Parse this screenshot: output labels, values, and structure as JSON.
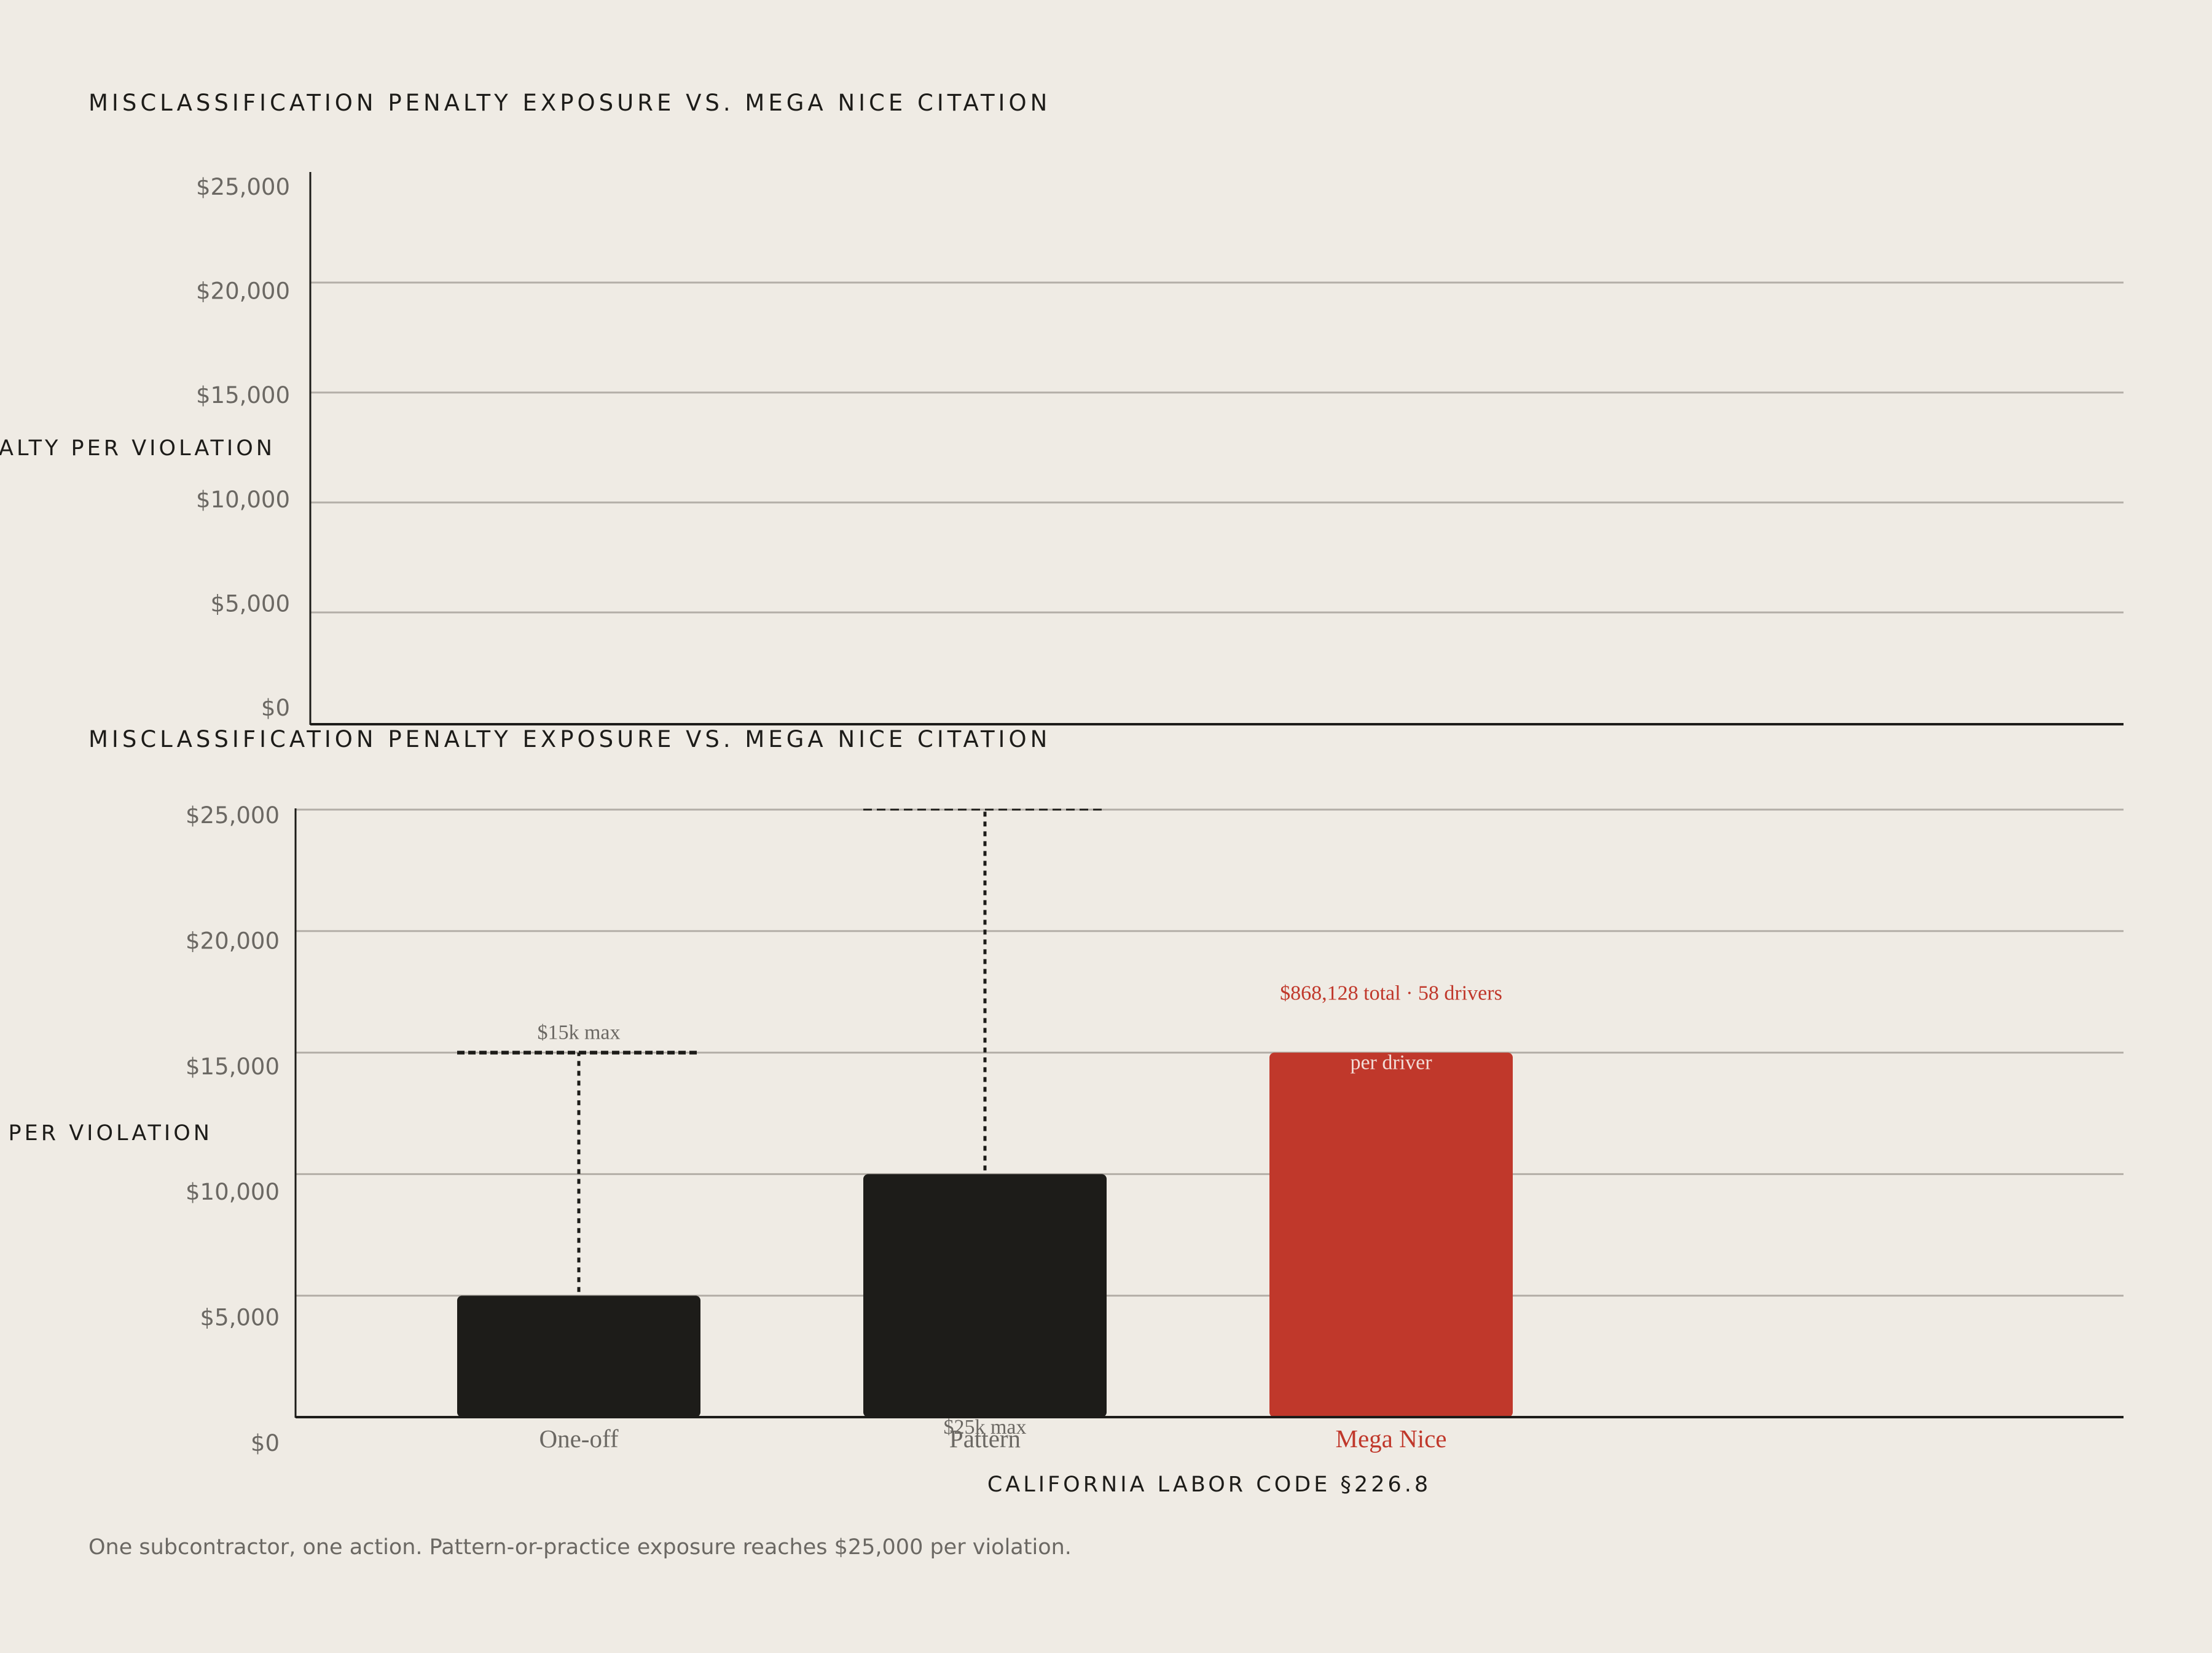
{
  "colors": {
    "background": "#efebe4",
    "bar": "#1d1c19",
    "highlight": "#c0382b",
    "grid": "#b3aea7",
    "muted_text": "#6b6863"
  },
  "caption": "One subcontractor, one action. Pattern-or-practice exposure reaches $25,000 per violation.",
  "chart_data": [
    {
      "type": "bar",
      "title": "MISCLASSIFICATION PENALTY EXPOSURE VS. MEGA NICE CITATION",
      "ylabel": "PENALTY PER VIOLATION",
      "ylim": [
        0,
        25000
      ],
      "yticks": [
        0,
        5000,
        10000,
        15000,
        20000,
        25000
      ],
      "ytick_labels": [
        "$0",
        "$5,000",
        "$10,000",
        "$15,000",
        "$20,000",
        "$25,000"
      ],
      "grid": true,
      "categories": [],
      "values": []
    },
    {
      "type": "bar",
      "title": "MISCLASSIFICATION PENALTY EXPOSURE VS. MEGA NICE CITATION",
      "ylabel": "PENALTY PER VIOLATION",
      "xlabel": "CALIFORNIA LABOR CODE §226.8",
      "ylim": [
        0,
        25000
      ],
      "yticks": [
        0,
        5000,
        10000,
        15000,
        20000,
        25000
      ],
      "ytick_labels": [
        "$0",
        "$5,000",
        "$10,000",
        "$15,000",
        "$20,000",
        "$25,000"
      ],
      "grid": true,
      "categories": [
        "One-off",
        "Pattern",
        "Mega Nice"
      ],
      "values": [
        5000,
        10000,
        15000
      ],
      "highlight": "Mega Nice",
      "ranges": [
        {
          "category": "One-off",
          "from": 5000,
          "to": 15000,
          "label": "$15k max"
        },
        {
          "category": "Pattern",
          "from": 10000,
          "to": 25000,
          "label": "$25k max"
        }
      ],
      "annotations": [
        {
          "category": "Mega Nice",
          "text": "$868,128 total · 58 drivers"
        },
        {
          "category": "Mega Nice",
          "text": "per driver"
        }
      ]
    }
  ]
}
